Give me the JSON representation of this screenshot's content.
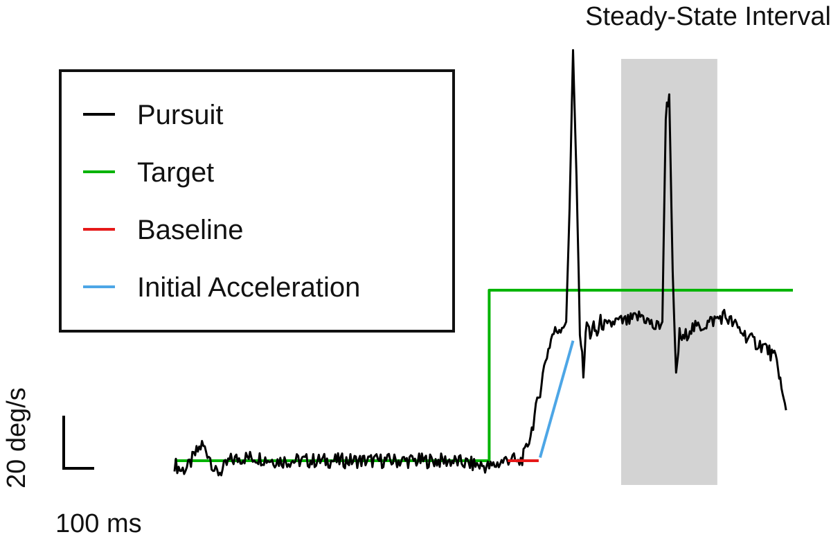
{
  "chart_data": {
    "type": "line",
    "title": "",
    "xlabel": "",
    "ylabel": "",
    "annotations": {
      "shaded_region_label": "Steady-State Interval"
    },
    "scale_bar": {
      "time_label": "100 ms",
      "velocity_label": "20 deg/s",
      "time_ms": 100,
      "velocity_deg_s": 20
    },
    "legend_position": "top-left",
    "xlim_ms": [
      0,
      900
    ],
    "ylim_deg_s": [
      -5,
      60
    ],
    "shaded_region_ms": [
      650,
      790
    ],
    "series": [
      {
        "name": "Pursuit",
        "color": "#000000",
        "x": [
          0,
          10,
          20,
          30,
          40,
          50,
          60,
          70,
          80,
          100,
          120,
          150,
          200,
          250,
          300,
          350,
          400,
          430,
          460,
          480,
          490,
          500,
          510,
          520,
          530,
          540,
          550,
          560,
          570,
          575,
          580,
          585,
          590,
          595,
          600,
          605,
          610,
          615,
          620,
          630,
          640,
          660,
          680,
          700,
          710,
          715,
          720,
          725,
          730,
          735,
          740,
          750,
          760,
          780,
          800,
          820,
          840,
          860,
          875,
          880,
          885,
          890
        ],
        "values": [
          -0.5,
          -1.5,
          -1,
          1,
          2.5,
          1,
          -2,
          -1.5,
          0,
          0.5,
          0.5,
          0,
          0,
          0,
          0,
          0,
          0,
          -0.5,
          -1,
          0,
          0.5,
          -0.5,
          1,
          5,
          10,
          16,
          20,
          21,
          22,
          40,
          65,
          45,
          21,
          14,
          22,
          20,
          21,
          20,
          22,
          21,
          22,
          22,
          23,
          21,
          22,
          55,
          58,
          30,
          13,
          20,
          19,
          21,
          21,
          22,
          23,
          21,
          19,
          18,
          16,
          14,
          10,
          8
        ]
      },
      {
        "name": "Target",
        "color": "#00b300",
        "x": [
          0,
          458,
          458,
          900
        ],
        "values": [
          0,
          0,
          27,
          27
        ]
      },
      {
        "name": "Baseline",
        "color": "#e61919",
        "x": [
          485,
          530
        ],
        "values": [
          0,
          0
        ]
      },
      {
        "name": "Initial Acceleration",
        "color": "#4da6e6",
        "x": [
          532,
          580
        ],
        "values": [
          0.5,
          19
        ]
      }
    ]
  }
}
